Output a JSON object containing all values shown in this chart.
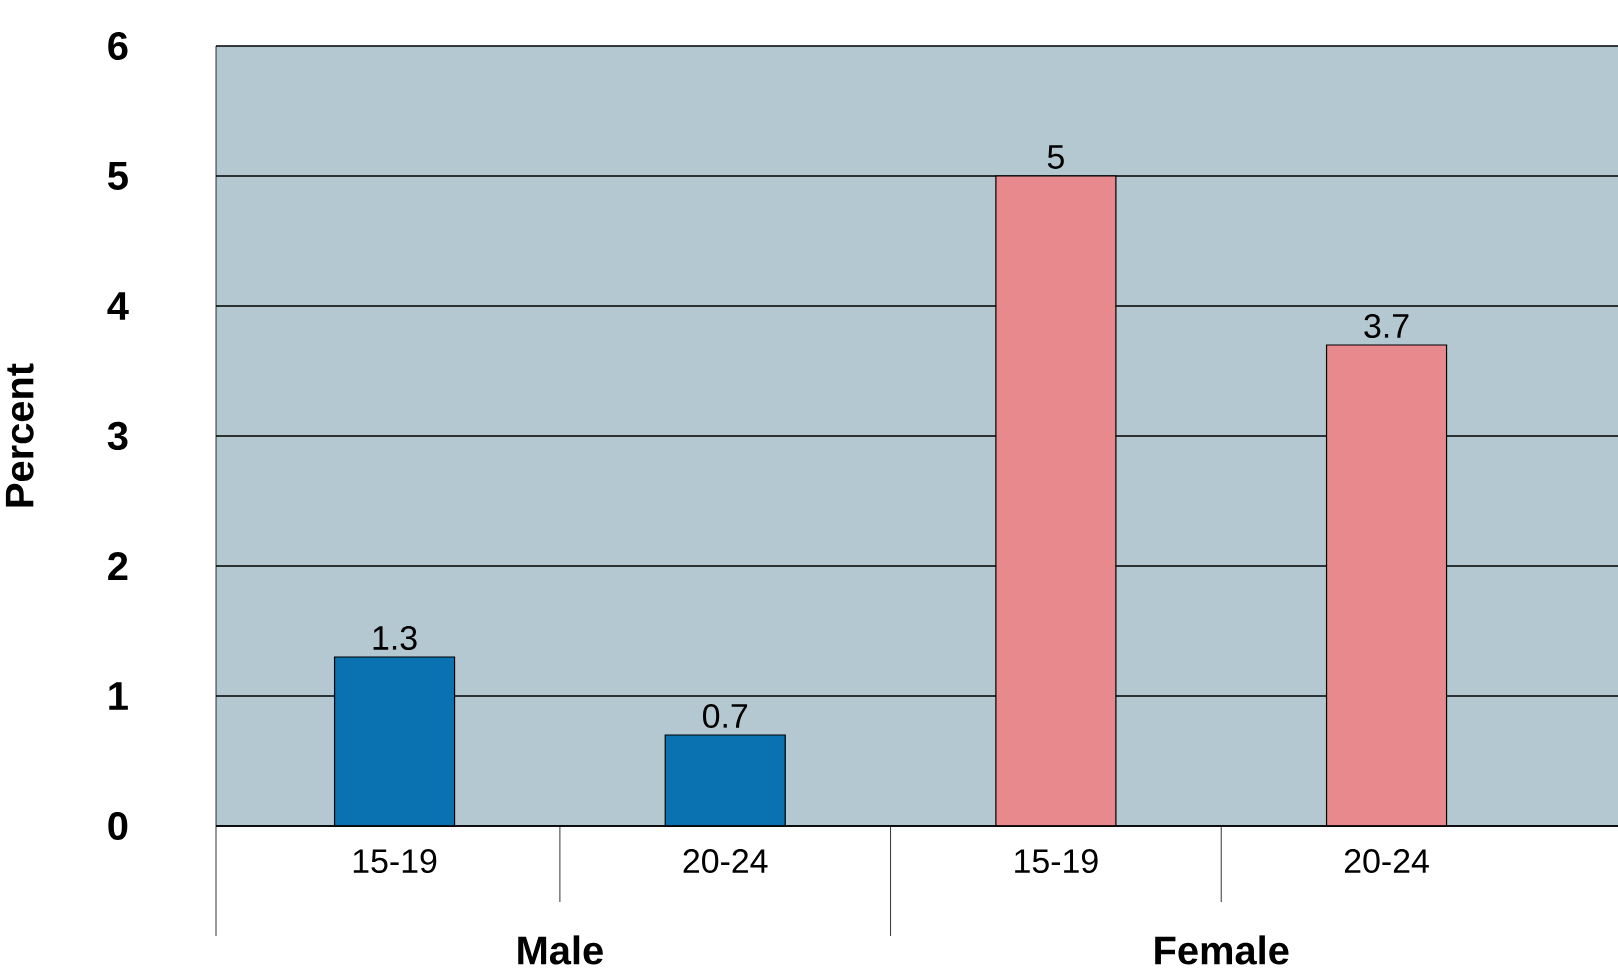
{
  "chart_data": {
    "type": "bar",
    "ylabel": "Percent",
    "categories": [
      "15-19",
      "20-24",
      "15-19",
      "20-24"
    ],
    "values": [
      1.3,
      0.7,
      5,
      3.7
    ],
    "value_labels": [
      "1.3",
      "0.7",
      "5",
      "3.7"
    ],
    "colors": [
      "#0a72b0",
      "#0a72b0",
      "#e8898d",
      "#e8898d"
    ],
    "ylim": [
      0,
      6
    ],
    "yticks": [
      0,
      1,
      2,
      3,
      4,
      5,
      6
    ],
    "grid": "y",
    "annotations": [
      "Male",
      "Female"
    ]
  }
}
